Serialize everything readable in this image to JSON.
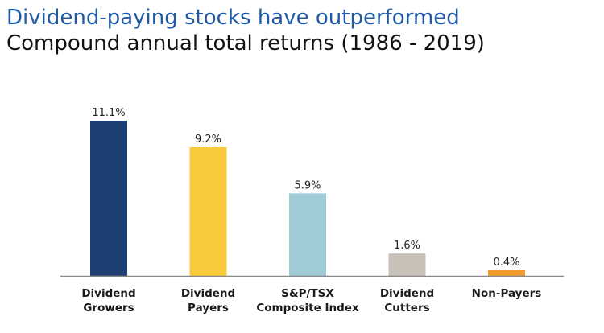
{
  "chart_data": {
    "type": "bar",
    "title": "Dividend-paying stocks have outperformed",
    "subtitle": "Compound annual total returns (1986 - 2019)",
    "categories": [
      [
        "Dividend",
        "Growers"
      ],
      [
        "Dividend",
        "Payers"
      ],
      [
        "S&P/TSX",
        "Composite Index"
      ],
      [
        "Dividend",
        "Cutters"
      ],
      [
        "Non-Payers"
      ]
    ],
    "values": [
      11.1,
      9.2,
      5.9,
      1.6,
      0.4
    ],
    "value_labels": [
      "11.1%",
      "9.2%",
      "5.9%",
      "1.6%",
      "0.4%"
    ],
    "colors": [
      "#1d3f72",
      "#f9c93c",
      "#9ecbd6",
      "#c7c1b8",
      "#f29a2e"
    ],
    "axis_color": "#8a8a8a",
    "ylim": [
      0,
      11.1
    ],
    "grid": false,
    "legend": "none"
  }
}
